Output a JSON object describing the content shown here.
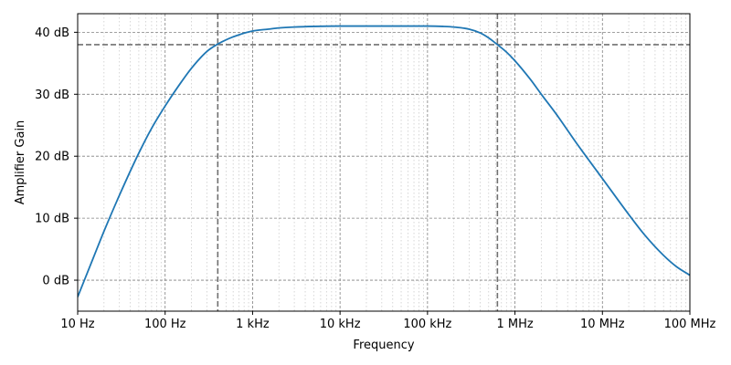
{
  "chart_data": {
    "type": "line",
    "title": "",
    "xlabel": "Frequency",
    "ylabel": "Amplifier Gain",
    "x_scale": "log",
    "xlim": [
      10,
      100000000
    ],
    "ylim": [
      -5,
      43
    ],
    "x_ticks": [
      {
        "value": 10,
        "label": "10 Hz"
      },
      {
        "value": 100,
        "label": "100 Hz"
      },
      {
        "value": 1000,
        "label": "1 kHz"
      },
      {
        "value": 10000,
        "label": "10 kHz"
      },
      {
        "value": 100000,
        "label": "100 kHz"
      },
      {
        "value": 1000000,
        "label": "1 MHz"
      },
      {
        "value": 10000000,
        "label": "10 MHz"
      },
      {
        "value": 100000000,
        "label": "100 MHz"
      }
    ],
    "y_ticks": [
      {
        "value": 0,
        "label": "0 dB"
      },
      {
        "value": 10,
        "label": "10 dB"
      },
      {
        "value": 20,
        "label": "20 dB"
      },
      {
        "value": 30,
        "label": "30 dB"
      },
      {
        "value": 40,
        "label": "40 dB"
      }
    ],
    "grid": {
      "major": true,
      "minor": true
    },
    "reference_lines": {
      "horizontal": [
        38
      ],
      "vertical": [
        400,
        630000
      ]
    },
    "colors": {
      "series": "#1f77b4",
      "grid": "#808080",
      "minor_grid": "#cccccc",
      "reference": "#707070"
    },
    "series": [
      {
        "name": "",
        "x": [
          10,
          15,
          20,
          30,
          50,
          70,
          100,
          150,
          200,
          300,
          400,
          500,
          700,
          1000,
          1500,
          2000,
          3000,
          5000,
          10000,
          20000,
          50000,
          100000,
          150000,
          200000,
          300000,
          400000,
          500000,
          630000,
          800000,
          1000000,
          1500000,
          2000000,
          3000000,
          5000000,
          10000000,
          20000000,
          30000000,
          50000000,
          70000000,
          100000000
        ],
        "y": [
          -2.7,
          3.5,
          7.9,
          13.7,
          20.5,
          24.5,
          28.1,
          31.8,
          34.2,
          36.9,
          38.1,
          38.8,
          39.6,
          40.2,
          40.5,
          40.7,
          40.85,
          40.95,
          41.0,
          41.0,
          41.0,
          41.0,
          40.95,
          40.85,
          40.5,
          39.9,
          39.1,
          38.0,
          36.8,
          35.4,
          32.4,
          30.0,
          26.7,
          22.2,
          16.4,
          10.6,
          7.4,
          4.0,
          2.2,
          0.8
        ]
      }
    ]
  }
}
